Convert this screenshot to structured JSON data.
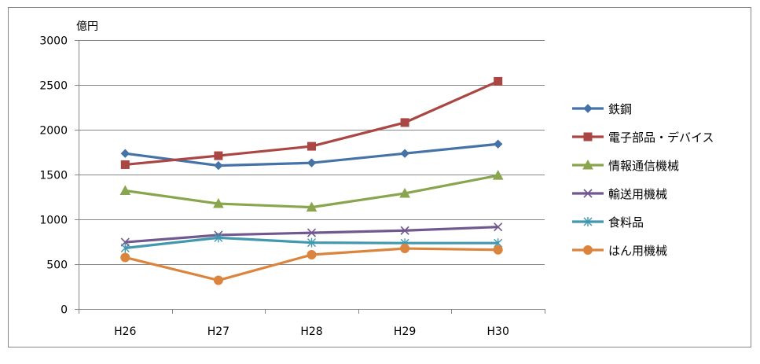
{
  "chart_data": {
    "type": "line",
    "ylabel": "億円",
    "categories": [
      "H26",
      "H27",
      "H28",
      "H29",
      "H30"
    ],
    "ylim": [
      0,
      3000
    ],
    "yticks": [
      0,
      500,
      1000,
      1500,
      2000,
      2500,
      3000
    ],
    "grid": true,
    "legend_position": "right",
    "series": [
      {
        "name": "鉄鋼",
        "values": [
          1735,
          1600,
          1630,
          1735,
          1840
        ],
        "color": "#4572A7",
        "marker": "diamond"
      },
      {
        "name": "電子部品・デバイス",
        "values": [
          1610,
          1710,
          1815,
          2080,
          2540
        ],
        "color": "#AA4643",
        "marker": "square"
      },
      {
        "name": "情報通信機械",
        "values": [
          1320,
          1175,
          1135,
          1290,
          1490
        ],
        "color": "#89A54E",
        "marker": "triangle"
      },
      {
        "name": "輸送用機械",
        "values": [
          745,
          825,
          850,
          875,
          915
        ],
        "color": "#71588F",
        "marker": "x"
      },
      {
        "name": "食料品",
        "values": [
          680,
          795,
          740,
          735,
          735
        ],
        "color": "#4198AF",
        "marker": "asterisk"
      },
      {
        "name": "はん用機械",
        "values": [
          575,
          320,
          605,
          675,
          660
        ],
        "color": "#DB843D",
        "marker": "circle"
      }
    ]
  }
}
